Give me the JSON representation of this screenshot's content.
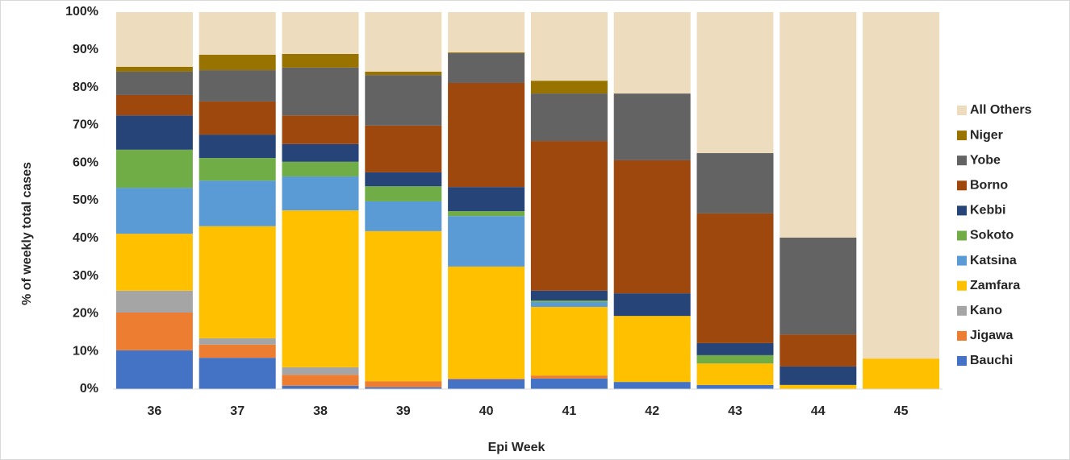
{
  "chart_data": {
    "type": "stacked_bar",
    "x_label": "Epi Week",
    "y_label": "% of weekly total cases",
    "categories": [
      "36",
      "37",
      "38",
      "39",
      "40",
      "41",
      "42",
      "43",
      "44",
      "45"
    ],
    "ylim": [
      0,
      100
    ],
    "yticks": [
      {
        "value": 0,
        "label": "0%"
      },
      {
        "value": 10,
        "label": "10%"
      },
      {
        "value": 20,
        "label": "20%"
      },
      {
        "value": 30,
        "label": "30%"
      },
      {
        "value": 40,
        "label": "40%"
      },
      {
        "value": 50,
        "label": "50%"
      },
      {
        "value": 60,
        "label": "60%"
      },
      {
        "value": 70,
        "label": "70%"
      },
      {
        "value": 80,
        "label": "80%"
      },
      {
        "value": 90,
        "label": "90%"
      },
      {
        "value": 100,
        "label": "100%"
      }
    ],
    "grid": false,
    "legend": "right",
    "series": [
      {
        "name": "Bauchi",
        "color": "#4472c4",
        "values": [
          10.3,
          8.3,
          0.9,
          0.5,
          2.6,
          2.8,
          1.9,
          1.1,
          0,
          0
        ]
      },
      {
        "name": "Jigawa",
        "color": "#ed7d31",
        "values": [
          10.0,
          3.5,
          2.9,
          1.6,
          0.2,
          0.8,
          0,
          0,
          0,
          0
        ]
      },
      {
        "name": "Kano",
        "color": "#a5a5a5",
        "values": [
          5.8,
          1.7,
          2.0,
          0,
          0,
          0,
          0,
          0,
          0,
          0
        ]
      },
      {
        "name": "Zamfara",
        "color": "#ffc000",
        "values": [
          15.1,
          29.7,
          41.6,
          39.8,
          29.7,
          18.2,
          17.5,
          5.7,
          1.1,
          8.1
        ]
      },
      {
        "name": "Katsina",
        "color": "#5b9bd5",
        "values": [
          12.2,
          12.1,
          9.0,
          7.9,
          13.4,
          1.3,
          0,
          0,
          0,
          0
        ]
      },
      {
        "name": "Sokoto",
        "color": "#70ad47",
        "values": [
          10.1,
          6.0,
          3.9,
          4.0,
          1.3,
          0.4,
          0,
          2.2,
          0,
          0
        ]
      },
      {
        "name": "Kebbi",
        "color": "#264478",
        "values": [
          9.1,
          6.2,
          4.7,
          3.7,
          6.4,
          2.6,
          6.0,
          3.2,
          4.9,
          0
        ]
      },
      {
        "name": "Borno",
        "color": "#9e480e",
        "values": [
          5.4,
          8.8,
          7.6,
          12.4,
          27.6,
          39.7,
          35.3,
          34.4,
          8.5,
          0
        ]
      },
      {
        "name": "Yobe",
        "color": "#636363",
        "values": [
          6.2,
          8.3,
          12.7,
          13.4,
          7.9,
          12.6,
          17.7,
          16.0,
          25.7,
          0
        ]
      },
      {
        "name": "Niger",
        "color": "#997300",
        "values": [
          1.3,
          4.1,
          3.6,
          0.9,
          0.2,
          3.4,
          0,
          0,
          0,
          0
        ]
      },
      {
        "name": "All Others",
        "color": "#eddcbd",
        "values": [
          14.5,
          11.3,
          11.1,
          15.8,
          10.7,
          18.2,
          21.6,
          37.4,
          59.8,
          91.9
        ]
      }
    ]
  }
}
